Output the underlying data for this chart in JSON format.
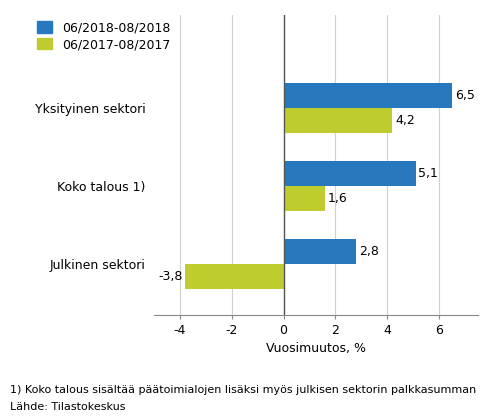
{
  "categories": [
    "Yksityinen sektori",
    "Koko talous 1)",
    "Julkinen sektori"
  ],
  "series": [
    {
      "label": "06/2018-08/2018",
      "color": "#2878BE",
      "values": [
        6.5,
        5.1,
        2.8
      ]
    },
    {
      "label": "06/2017-08/2017",
      "color": "#BECC2E",
      "values": [
        4.2,
        1.6,
        -3.8
      ]
    }
  ],
  "xlabel": "Vuosimuutos, %",
  "xlim": [
    -5,
    7.5
  ],
  "xticks": [
    -4,
    -2,
    0,
    2,
    4,
    6
  ],
  "footnote1": "1) Koko talous sisältää päätoimialojen lisäksi myös julkisen sektorin palkkasumman",
  "footnote2": "Lähde: Tilastokeskus",
  "bar_height": 0.32,
  "label_fontsize": 9,
  "tick_fontsize": 9,
  "xlabel_fontsize": 9,
  "footnote_fontsize": 8,
  "legend_fontsize": 9,
  "value_label_fontsize": 9,
  "bg_color": "#ffffff",
  "grid_color": "#d0d0d0",
  "spine_color": "#888888"
}
